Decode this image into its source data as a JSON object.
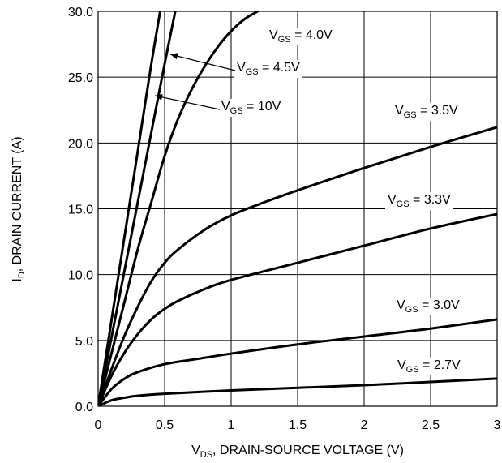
{
  "chart_data": {
    "type": "line",
    "xlabel": {
      "prefix": "V",
      "sub": "DS",
      "suffix": ", DRAIN-SOURCE VOLTAGE (V)"
    },
    "ylabel": {
      "prefix": "I",
      "sub": "D",
      "suffix": ", DRAIN CURRENT (A)"
    },
    "xlim": [
      0,
      3
    ],
    "ylim": [
      0,
      30
    ],
    "grid": true,
    "x_ticks": [
      {
        "value": 0,
        "label": "0"
      },
      {
        "value": 0.5,
        "label": "0.5"
      },
      {
        "value": 1,
        "label": "1"
      },
      {
        "value": 1.5,
        "label": "1.5"
      },
      {
        "value": 2,
        "label": "2"
      },
      {
        "value": 2.5,
        "label": "2.5"
      },
      {
        "value": 3,
        "label": "3"
      }
    ],
    "y_ticks": [
      {
        "value": 0,
        "label": "0.0"
      },
      {
        "value": 5,
        "label": "5.0"
      },
      {
        "value": 10,
        "label": "10.0"
      },
      {
        "value": 15,
        "label": "15.0"
      },
      {
        "value": 20,
        "label": "20.0"
      },
      {
        "value": 25,
        "label": "25.0"
      },
      {
        "value": 30,
        "label": "30.0"
      }
    ],
    "series": [
      {
        "name": "V_GS = 10V",
        "label": {
          "prefix": "V",
          "sub": "GS",
          "suffix": " = 10V"
        },
        "x": [
          0,
          0.1,
          0.2,
          0.3,
          0.4,
          0.5
        ],
        "y": [
          0,
          6.5,
          13,
          19.5,
          26,
          32
        ]
      },
      {
        "name": "V_GS = 4.5V",
        "label": {
          "prefix": "V",
          "sub": "GS",
          "suffix": " = 4.5V"
        },
        "x": [
          0,
          0.1,
          0.2,
          0.3,
          0.4,
          0.5,
          0.6
        ],
        "y": [
          0,
          5.2,
          10.4,
          15.6,
          20.8,
          26,
          31
        ]
      },
      {
        "name": "V_GS = 4.0V",
        "label": {
          "prefix": "V",
          "sub": "GS",
          "suffix": " = 4.0V"
        },
        "x": [
          0,
          0.1,
          0.2,
          0.3,
          0.4,
          0.5,
          0.6,
          0.7,
          0.8,
          0.9,
          1.0,
          1.1,
          1.2
        ],
        "y": [
          0,
          4.0,
          8.0,
          12.0,
          15.5,
          19.0,
          21.8,
          24.0,
          25.8,
          27.3,
          28.5,
          29.4,
          30.0
        ]
      },
      {
        "name": "V_GS = 3.5V",
        "label": {
          "prefix": "V",
          "sub": "GS",
          "suffix": " = 3.5V"
        },
        "x": [
          0,
          0.1,
          0.2,
          0.3,
          0.4,
          0.5,
          0.6,
          0.8,
          1.0,
          1.25,
          1.5,
          2.0,
          2.5,
          3.0
        ],
        "y": [
          0,
          2.8,
          5.4,
          7.6,
          9.5,
          10.9,
          11.9,
          13.4,
          14.5,
          15.5,
          16.4,
          18.1,
          19.7,
          21.2
        ]
      },
      {
        "name": "V_GS = 3.3V",
        "label": {
          "prefix": "V",
          "sub": "GS",
          "suffix": " = 3.3V"
        },
        "x": [
          0,
          0.1,
          0.2,
          0.3,
          0.4,
          0.5,
          0.6,
          0.8,
          1.0,
          1.5,
          2.0,
          2.5,
          3.0
        ],
        "y": [
          0,
          2.3,
          4.1,
          5.5,
          6.6,
          7.4,
          8.0,
          8.9,
          9.6,
          10.9,
          12.2,
          13.5,
          14.6
        ]
      },
      {
        "name": "V_GS = 3.0V",
        "label": {
          "prefix": "V",
          "sub": "GS",
          "suffix": " = 3.0V"
        },
        "x": [
          0,
          0.1,
          0.2,
          0.3,
          0.5,
          0.75,
          1.0,
          1.5,
          2.0,
          2.5,
          3.0
        ],
        "y": [
          0,
          1.3,
          2.1,
          2.6,
          3.2,
          3.6,
          4.0,
          4.7,
          5.3,
          5.9,
          6.6
        ]
      },
      {
        "name": "V_GS = 2.7V",
        "label": {
          "prefix": "V",
          "sub": "GS",
          "suffix": " = 2.7V"
        },
        "x": [
          0,
          0.1,
          0.2,
          0.3,
          0.5,
          1.0,
          1.5,
          2.0,
          2.5,
          3.0
        ],
        "y": [
          0,
          0.45,
          0.65,
          0.8,
          0.95,
          1.2,
          1.4,
          1.6,
          1.85,
          2.1
        ]
      }
    ],
    "style": {
      "line_color": "#000000",
      "grid_color": "#000000",
      "background": "#ffffff"
    }
  }
}
